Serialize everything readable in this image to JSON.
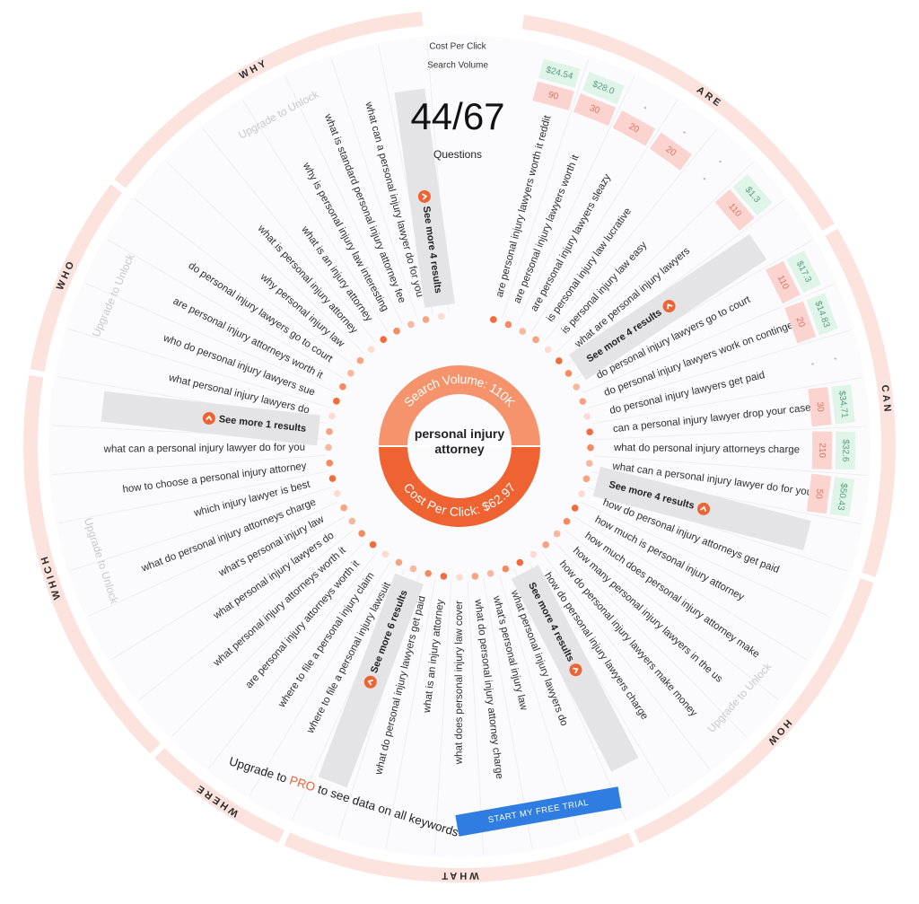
{
  "header": {
    "cost_per_click_label": "Cost Per Click",
    "search_volume_label": "Search Volume",
    "count": "44/67",
    "count_label": "Questions"
  },
  "center": {
    "keyword": "personal injury attorney",
    "search_volume": "Search Volume: 110K",
    "cost_per_click": "Cost Per Click: $62.97"
  },
  "sections": [
    {
      "name": "ARE",
      "questions": [
        "are personal injury lawyers worth it reddit",
        "are personal injury lawyers worth it",
        "are personal injury lawyers sleazy",
        "is personal injury law lucrative",
        "is personal injury law easy",
        "what are personal injury lawyers"
      ],
      "see_more": "See more 4 results",
      "search_volume": [
        90,
        30,
        20,
        20,
        null,
        110
      ],
      "cpc": [
        "$24.54",
        "$28.0",
        null,
        null,
        null,
        "$1.3"
      ]
    },
    {
      "name": "CAN",
      "questions": [
        "do personal injury lawyers go to court",
        "do personal injury lawyers work on contingency",
        "do personal injury lawyers get paid",
        "can a personal injury lawyer drop your case",
        "what do personal injury attorneys charge",
        "what can a personal injury lawyer do for you"
      ],
      "see_more": "See more 4 results",
      "search_volume": [
        110,
        20,
        null,
        30,
        210,
        50
      ],
      "cpc": [
        "$17.3",
        "$14.83",
        null,
        "$34.71",
        "$32.6",
        "$50.43"
      ]
    },
    {
      "name": "HOW",
      "questions": [
        "how do personal injury attorneys get paid",
        "how much is personal injury attorney",
        "how much does personal injury attorney make",
        "how many personal injury lawyers in the us",
        "how do personal injury lawyers make money",
        "how do personal injury lawyers charge"
      ],
      "see_more": "See more 4 results",
      "locked": "Upgrade to Unlock"
    },
    {
      "name": "WHAT",
      "questions": [
        "what personal injury lawyers do",
        "what's personal injury law",
        "what do personal injury attorney charge",
        "what does personal injury law cover",
        "what is an injury attorney",
        "what do personal injury lawyers get paid"
      ],
      "see_more": "See more 6 results"
    },
    {
      "name": "WHERE",
      "questions": [
        "where to file a personal injury lawsuit",
        "where to file a personal injury claim",
        "are personal injury attorneys worth it"
      ]
    },
    {
      "name": "WHICH",
      "questions": [
        "what personal injury attorneys worth it",
        "what personal injury lawyers do",
        "what's personal injury law",
        "what do personal injury attorneys charge",
        "which injury lawyer is best",
        "how to choose a personal injury attorney",
        "what can a personal injury lawyer do for you"
      ],
      "see_more": "See more 1 results",
      "locked": "Upgrade to Unlock"
    },
    {
      "name": "WHO",
      "questions": [
        "what personal injury lawyers do",
        "who do personal injury lawyers sue",
        "are personal injury attorneys worth it",
        "do personal injury lawyers go to court"
      ],
      "locked": "Upgrade to Unlock"
    },
    {
      "name": "WHY",
      "questions": [
        "why personal injury law",
        "what is personal injury attorney",
        "what is an injury attorney",
        "why is personal injury law interesting",
        "what is standard personal injury attorney fee",
        "what can a personal injury lawyer do for you"
      ],
      "see_more": "See more 4 results",
      "locked": "Upgrade to Unlock"
    }
  ],
  "cta": {
    "prefix": "Upgrade to ",
    "highlight": "PRO",
    "suffix": " to see data on all keywords",
    "button": "START MY FREE TRIAL"
  }
}
